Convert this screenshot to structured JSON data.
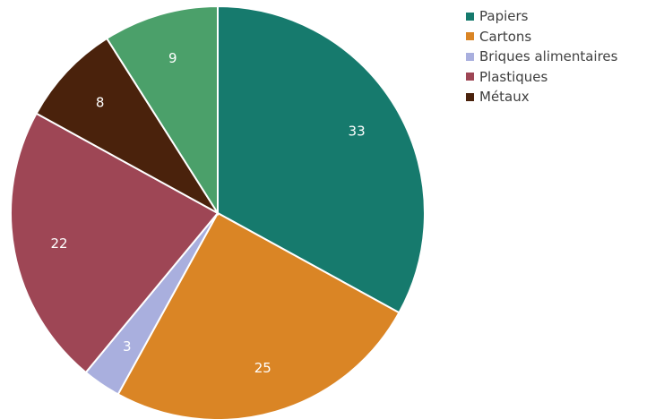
{
  "chart_data": {
    "type": "pie",
    "title": "",
    "legend_position": "top-right",
    "slices": [
      {
        "name": "Papiers",
        "value": 33,
        "label": "33",
        "color": "#167A6D"
      },
      {
        "name": "Cartons",
        "value": 25,
        "label": "25",
        "color": "#DA8525"
      },
      {
        "name": "Briques alimentaires",
        "value": 3,
        "label": "3",
        "color": "#A9AFDE"
      },
      {
        "name": "Plastiques",
        "value": 22,
        "label": "22",
        "color": "#9E4655"
      },
      {
        "name": "Métaux",
        "value": 8,
        "label": "8",
        "color": "#4A220C"
      },
      {
        "name": "",
        "value": 9,
        "label": "9",
        "color": "#4BA06A"
      }
    ],
    "legend": [
      {
        "name": "Papiers",
        "color": "#167A6D"
      },
      {
        "name": "Cartons",
        "color": "#DA8525"
      },
      {
        "name": "Briques alimentaires",
        "color": "#A9AFDE"
      },
      {
        "name": "Plastiques",
        "color": "#9E4655"
      },
      {
        "name": "Métaux",
        "color": "#4A220C"
      }
    ]
  }
}
